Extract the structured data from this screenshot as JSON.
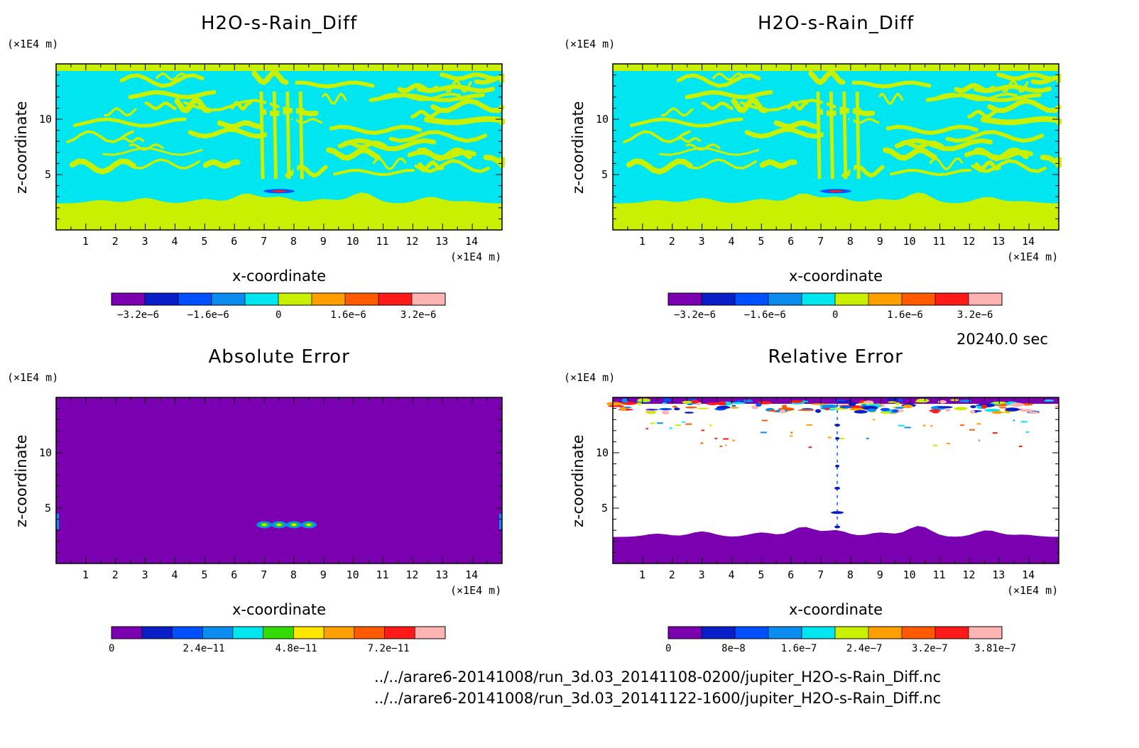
{
  "timestamp": "20240.0 sec",
  "source_files": [
    "../../arare6-20141008/run_3d.03_20141108-0200/jupiter_H2O-s-Rain_Diff.nc",
    "../../arare6-20141008/run_3d.03_20141122-1600/jupiter_H2O-s-Rain_Diff.nc"
  ],
  "chart_data": [
    {
      "type": "heatmap",
      "title": "H2O-s-Rain_Diff",
      "xlabel": "x-coordinate",
      "ylabel": "z-coordinate",
      "x_unit": "(×1E4 m)",
      "y_unit": "(×1E4 m)",
      "xlim": [
        0,
        15
      ],
      "ylim": [
        0,
        15
      ],
      "x_ticks": [
        1,
        2,
        3,
        4,
        5,
        6,
        7,
        8,
        9,
        10,
        11,
        12,
        13,
        14
      ],
      "y_ticks": [
        5,
        10
      ],
      "colorbar": {
        "colors": [
          "#7a00b0",
          "#0a1ec8",
          "#0050ff",
          "#0a8cf0",
          "#00e6f0",
          "#c8f000",
          "#ffa000",
          "#ff5a00",
          "#ff1a1a",
          "#ffb4b4"
        ],
        "tick_labels": [
          "−3.2e−6",
          "−1.6e−6",
          "0",
          "1.6e−6",
          "3.2e−6"
        ]
      },
      "field": "diff"
    },
    {
      "type": "heatmap",
      "title": "H2O-s-Rain_Diff",
      "xlabel": "x-coordinate",
      "ylabel": "z-coordinate",
      "x_unit": "(×1E4 m)",
      "y_unit": "(×1E4 m)",
      "xlim": [
        0,
        15
      ],
      "ylim": [
        0,
        15
      ],
      "x_ticks": [
        1,
        2,
        3,
        4,
        5,
        6,
        7,
        8,
        9,
        10,
        11,
        12,
        13,
        14
      ],
      "y_ticks": [
        5,
        10
      ],
      "colorbar": {
        "colors": [
          "#7a00b0",
          "#0a1ec8",
          "#0050ff",
          "#0a8cf0",
          "#00e6f0",
          "#c8f000",
          "#ffa000",
          "#ff5a00",
          "#ff1a1a",
          "#ffb4b4"
        ],
        "tick_labels": [
          "−3.2e−6",
          "−1.6e−6",
          "0",
          "1.6e−6",
          "3.2e−6"
        ]
      },
      "field": "diff"
    },
    {
      "type": "heatmap",
      "title": "Absolute Error",
      "xlabel": "x-coordinate",
      "ylabel": "z-coordinate",
      "x_unit": "(×1E4 m)",
      "y_unit": "(×1E4 m)",
      "xlim": [
        0,
        15
      ],
      "ylim": [
        0,
        15
      ],
      "x_ticks": [
        1,
        2,
        3,
        4,
        5,
        6,
        7,
        8,
        9,
        10,
        11,
        12,
        13,
        14
      ],
      "y_ticks": [
        5,
        10
      ],
      "colorbar": {
        "colors": [
          "#7a00b0",
          "#0a1ec8",
          "#0050ff",
          "#0a8cf0",
          "#00e6f0",
          "#32dc00",
          "#ffe600",
          "#ffa000",
          "#ff5a00",
          "#ff1a1a",
          "#ffb4b4"
        ],
        "tick_labels": [
          "0",
          "2.4e−11",
          "4.8e−11",
          "7.2e−11"
        ]
      },
      "field": "abs"
    },
    {
      "type": "heatmap",
      "title": "Relative Error",
      "xlabel": "x-coordinate",
      "ylabel": "z-coordinate",
      "x_unit": "(×1E4 m)",
      "y_unit": "(×1E4 m)",
      "xlim": [
        0,
        15
      ],
      "ylim": [
        0,
        15
      ],
      "x_ticks": [
        1,
        2,
        3,
        4,
        5,
        6,
        7,
        8,
        9,
        10,
        11,
        12,
        13,
        14
      ],
      "y_ticks": [
        5,
        10
      ],
      "colorbar": {
        "colors": [
          "#7a00b0",
          "#0a1ec8",
          "#0050ff",
          "#0a8cf0",
          "#00e6f0",
          "#c8f000",
          "#ffa000",
          "#ff5a00",
          "#ff1a1a",
          "#ffb4b4"
        ],
        "tick_labels": [
          "0",
          "8e−8",
          "1.6e−7",
          "2.4e−7",
          "3.2e−7",
          "3.81e−7"
        ]
      },
      "field": "rel"
    }
  ]
}
